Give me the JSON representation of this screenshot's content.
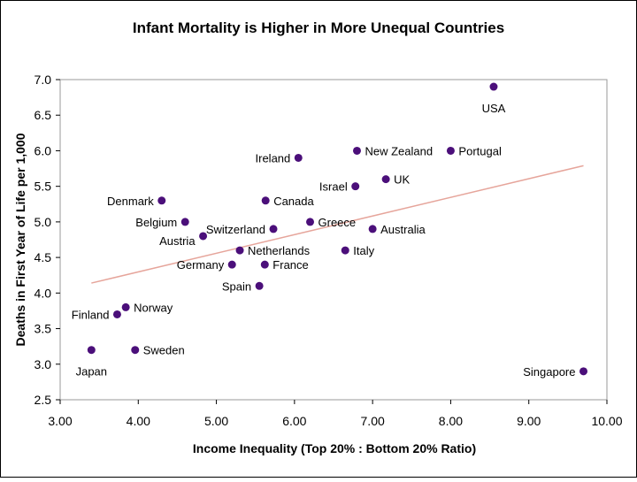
{
  "colors": {
    "point": "#4b0f7a",
    "trendline": "#e6a59b",
    "plot_border": "#9a9a9a",
    "frame_border": "#000000"
  },
  "chart_data": {
    "type": "scatter",
    "title": "Infant Mortality is Higher in More Unequal Countries",
    "xlabel": "Income Inequality (Top 20% : Bottom 20%  Ratio)",
    "ylabel": "Deaths in First Year of Life per 1,000",
    "xlim": [
      3.0,
      10.0
    ],
    "ylim": [
      2.5,
      7.0
    ],
    "xticks": [
      "3.00",
      "4.00",
      "5.00",
      "6.00",
      "7.00",
      "8.00",
      "9.00",
      "10.00"
    ],
    "yticks": [
      "2.5",
      "3.0",
      "3.5",
      "4.0",
      "4.5",
      "5.0",
      "5.5",
      "6.0",
      "6.5",
      "7.0"
    ],
    "grid": false,
    "legend": "none",
    "trendline": {
      "x": [
        3.4,
        9.7
      ],
      "y": [
        4.14,
        5.79
      ]
    },
    "points": [
      {
        "label": "Japan",
        "x": 3.4,
        "y": 3.2,
        "lpos": "below"
      },
      {
        "label": "Sweden",
        "x": 3.96,
        "y": 3.2,
        "lpos": "right"
      },
      {
        "label": "Finland",
        "x": 3.73,
        "y": 3.7,
        "lpos": "left"
      },
      {
        "label": "Norway",
        "x": 3.84,
        "y": 3.8,
        "lpos": "right"
      },
      {
        "label": "Denmark",
        "x": 4.3,
        "y": 5.3,
        "lpos": "left"
      },
      {
        "label": "Belgium",
        "x": 4.6,
        "y": 5.0,
        "lpos": "left"
      },
      {
        "label": "Austria",
        "x": 4.83,
        "y": 4.8,
        "lpos": "left-below"
      },
      {
        "label": "Germany",
        "x": 5.2,
        "y": 4.4,
        "lpos": "left"
      },
      {
        "label": "Netherlands",
        "x": 5.3,
        "y": 4.6,
        "lpos": "right"
      },
      {
        "label": "Switzerland",
        "x": 5.73,
        "y": 4.9,
        "lpos": "left"
      },
      {
        "label": "France",
        "x": 5.62,
        "y": 4.4,
        "lpos": "right"
      },
      {
        "label": "Spain",
        "x": 5.55,
        "y": 4.1,
        "lpos": "left"
      },
      {
        "label": "Canada",
        "x": 5.63,
        "y": 5.3,
        "lpos": "right"
      },
      {
        "label": "Ireland",
        "x": 6.05,
        "y": 5.9,
        "lpos": "left"
      },
      {
        "label": "Greece",
        "x": 6.2,
        "y": 5.0,
        "lpos": "right"
      },
      {
        "label": "Italy",
        "x": 6.65,
        "y": 4.6,
        "lpos": "right"
      },
      {
        "label": "Israel",
        "x": 6.78,
        "y": 5.5,
        "lpos": "left"
      },
      {
        "label": "New Zealand",
        "x": 6.8,
        "y": 6.0,
        "lpos": "right"
      },
      {
        "label": "Australia",
        "x": 7.0,
        "y": 4.9,
        "lpos": "right"
      },
      {
        "label": "UK",
        "x": 7.17,
        "y": 5.6,
        "lpos": "right"
      },
      {
        "label": "Portugal",
        "x": 8.0,
        "y": 6.0,
        "lpos": "right"
      },
      {
        "label": "USA",
        "x": 8.55,
        "y": 6.9,
        "lpos": "below"
      },
      {
        "label": "Singapore",
        "x": 9.7,
        "y": 2.9,
        "lpos": "left"
      }
    ]
  }
}
